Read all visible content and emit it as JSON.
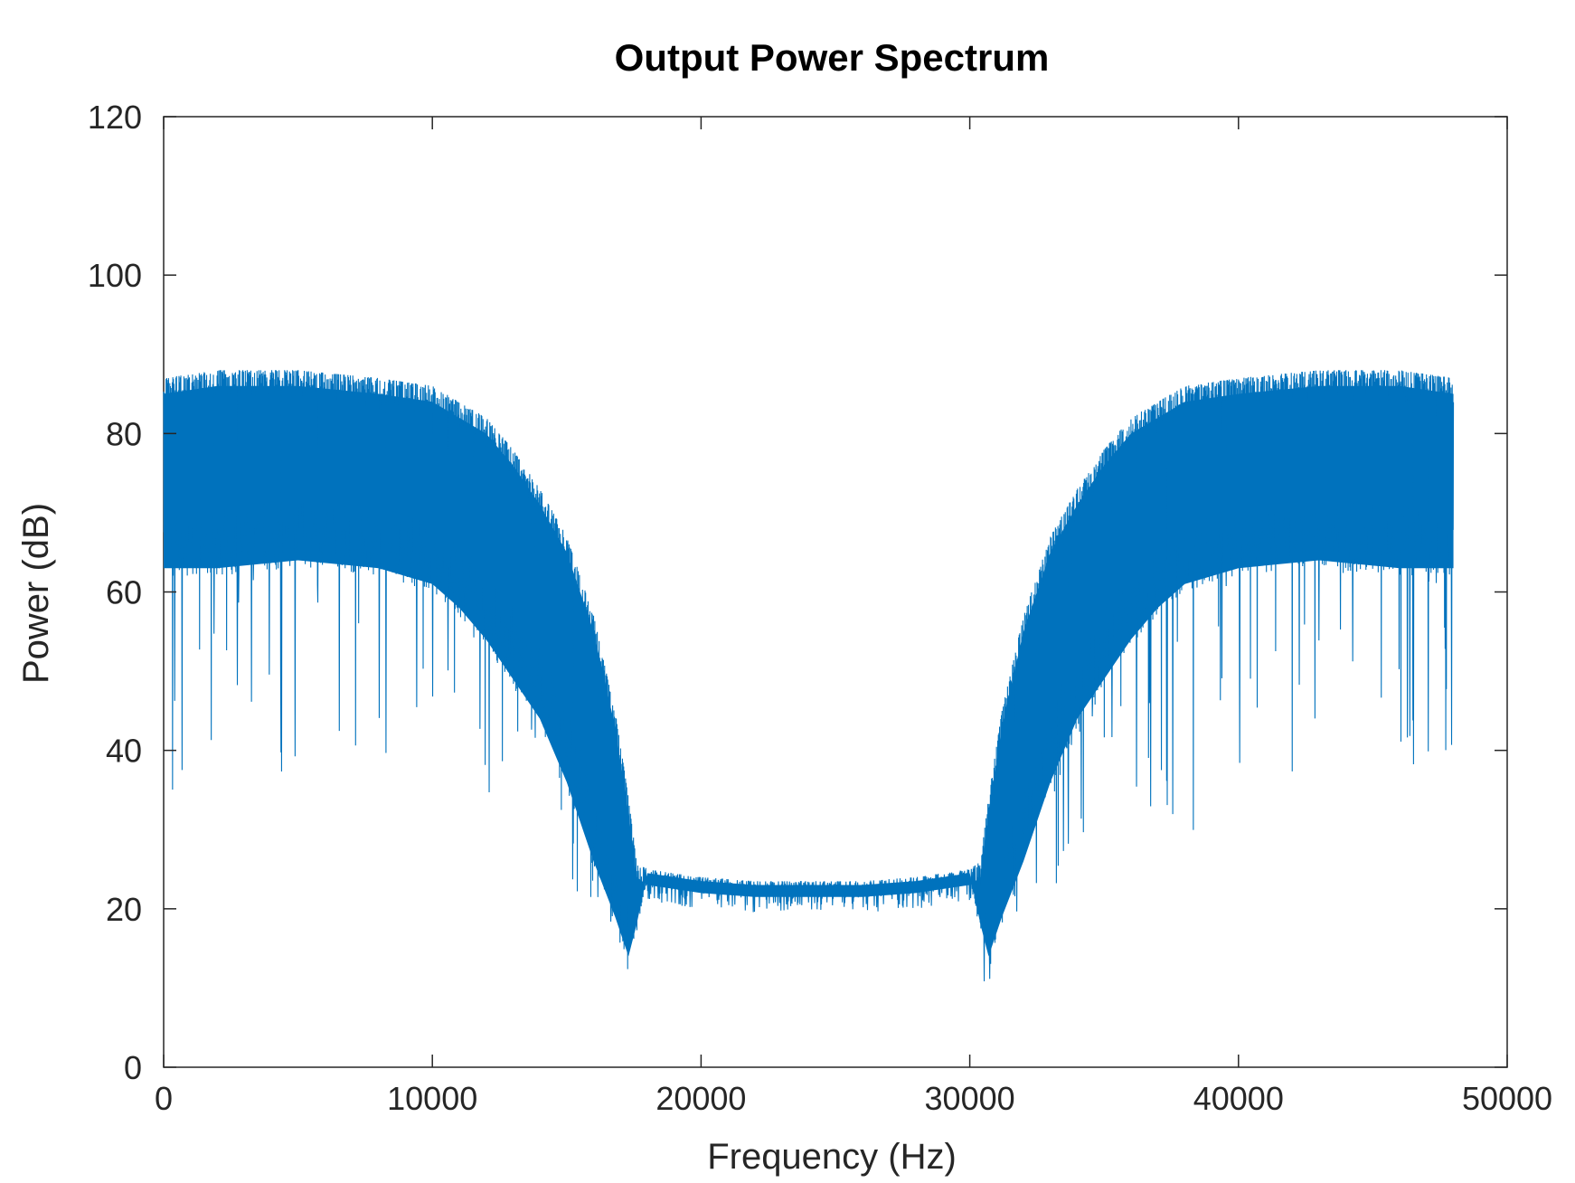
{
  "chart_data": {
    "type": "line",
    "title": "Output Power Spectrum",
    "xlabel": "Frequency (Hz)",
    "ylabel": "Power (dB)",
    "xlim": [
      0,
      50000
    ],
    "ylim": [
      0,
      120
    ],
    "x_ticks": [
      "0",
      "10000",
      "20000",
      "30000",
      "40000",
      "50000"
    ],
    "y_ticks": [
      "0",
      "20",
      "40",
      "60",
      "80",
      "100",
      "120"
    ],
    "grid": false,
    "series": [
      {
        "color": "#0072BD",
        "x_range": [
          0,
          48000
        ],
        "envelope": {
          "x": [
            0,
            2000,
            5000,
            8000,
            10000,
            11000,
            12000,
            13000,
            14000,
            15000,
            16000,
            16800,
            17300,
            17600,
            18000,
            20000,
            22000,
            24000,
            26000,
            28000,
            30000,
            30400,
            30700,
            31200,
            32000,
            33000,
            34000,
            35000,
            36000,
            37000,
            38000,
            40000,
            43000,
            46000,
            48000
          ],
          "upper": [
            87,
            88,
            88,
            87,
            86,
            84,
            82,
            78,
            73,
            67,
            57,
            45,
            34,
            26,
            25,
            24,
            23.5,
            23.5,
            23.5,
            24,
            25,
            26,
            34,
            45,
            57,
            67,
            73,
            78,
            82,
            84,
            86,
            87,
            88,
            88,
            87
          ],
          "lower": [
            62,
            62,
            63,
            62,
            60,
            57,
            53,
            48,
            43,
            35,
            25,
            18,
            13,
            17,
            23.5,
            22.5,
            22,
            22,
            22,
            22.5,
            23.5,
            17,
            13,
            18,
            25,
            35,
            43,
            48,
            53,
            57,
            60,
            62,
            63,
            62,
            62
          ],
          "dips_min": [
            23,
            41,
            36,
            36,
            28,
            30,
            34,
            30,
            27,
            21,
            21,
            12,
            9,
            10,
            23.5,
            22.5,
            22,
            22,
            22,
            22.5,
            23.5,
            10,
            9,
            12,
            21,
            21,
            27,
            30,
            34,
            30,
            28,
            36,
            36,
            41,
            23
          ]
        }
      }
    ]
  }
}
